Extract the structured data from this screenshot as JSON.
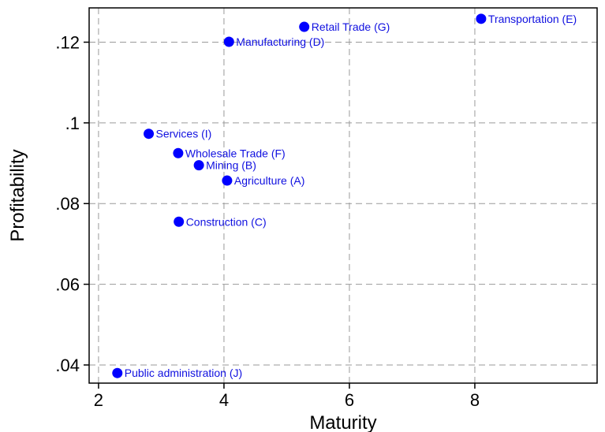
{
  "chart_data": {
    "type": "scatter",
    "xlabel": "Maturity",
    "ylabel": "Profitability",
    "xlim": [
      1.85,
      9.95
    ],
    "ylim": [
      0.0355,
      0.1285
    ],
    "x_ticks": [
      2,
      4,
      6,
      8
    ],
    "x_tick_labels": [
      "2",
      "4",
      "6",
      "8"
    ],
    "y_ticks": [
      0.04,
      0.06,
      0.08,
      0.1,
      0.12
    ],
    "y_tick_labels": [
      ".04",
      ".06",
      ".08",
      ".1",
      ".12"
    ],
    "grid": true,
    "marker_color": "#0000ff",
    "label_color": "#1010e0",
    "points": [
      {
        "label": "Transportation (E)",
        "x": 8.1,
        "y": 0.1258
      },
      {
        "label": "Retail Trade (G)",
        "x": 5.28,
        "y": 0.1238
      },
      {
        "label": "Manufacturing (D)",
        "x": 4.08,
        "y": 0.1201
      },
      {
        "label": "Services (I)",
        "x": 2.8,
        "y": 0.0973
      },
      {
        "label": "Wholesale Trade (F)",
        "x": 3.27,
        "y": 0.0925
      },
      {
        "label": "Mining (B)",
        "x": 3.6,
        "y": 0.0895
      },
      {
        "label": "Agriculture (A)",
        "x": 4.05,
        "y": 0.0857
      },
      {
        "label": "Construction (C)",
        "x": 3.28,
        "y": 0.0755
      },
      {
        "label": "Public administration (J)",
        "x": 2.3,
        "y": 0.038
      }
    ]
  }
}
